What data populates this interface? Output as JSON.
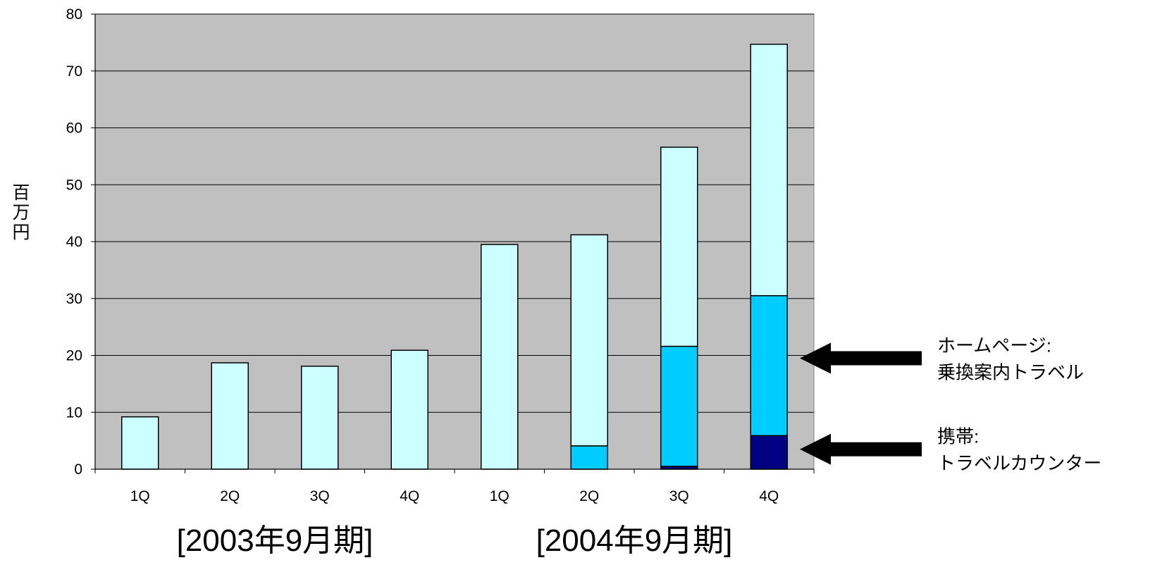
{
  "chart_data": {
    "type": "bar",
    "stacked": true,
    "title": "",
    "xlabel": "",
    "ylabel": "百万円",
    "ylim": [
      0,
      80
    ],
    "yticks": [
      0,
      10,
      20,
      30,
      40,
      50,
      60,
      70,
      80
    ],
    "grid": true,
    "categories": [
      "1Q",
      "2Q",
      "3Q",
      "4Q",
      "1Q",
      "2Q",
      "3Q",
      "4Q"
    ],
    "groups": [
      {
        "label": "[2003年9月期]",
        "categories": [
          "1Q",
          "2Q",
          "3Q",
          "4Q"
        ]
      },
      {
        "label": "[2004年9月期]",
        "categories": [
          "1Q",
          "2Q",
          "3Q",
          "4Q"
        ]
      }
    ],
    "series": [
      {
        "values": [
          0,
          0,
          0,
          0,
          0,
          0,
          0.5,
          5.9
        ],
        "color": "#000080"
      },
      {
        "values": [
          0,
          0,
          0,
          0,
          0,
          4.1,
          21.1,
          24.6
        ],
        "color": "#00CCFF"
      },
      {
        "values": [
          9.2,
          18.7,
          18.1,
          20.9,
          39.5,
          37.1,
          35.0,
          44.2
        ],
        "color": "#CCFFFF"
      }
    ],
    "annotations": [
      {
        "lines": [
          "ホームページ:",
          "乗換案内トラベル"
        ],
        "points_to_value": 19.5
      },
      {
        "lines": [
          "携帯:",
          "トラベルカウンター"
        ],
        "points_to_value": 3.5
      }
    ]
  },
  "colors": {
    "plot_background": "#C0C0C0",
    "grid": "#000000",
    "bar_outline": "#000000",
    "arrow": "#000000"
  }
}
